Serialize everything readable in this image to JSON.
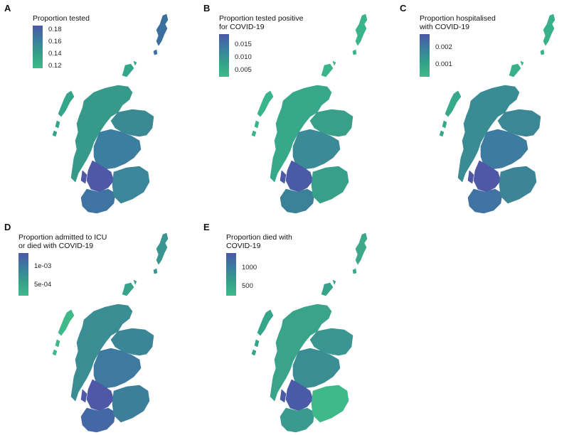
{
  "panels": [
    {
      "letter": "A",
      "legend_title": "Proportion tested",
      "legend_labels": [
        "0.18",
        "0.16",
        "0.14",
        "0.12"
      ],
      "region_colors": {
        "shetland": "#3a6f9e",
        "orkney": "#35a58a",
        "west_isles": "#35a58a",
        "north": "#37998a",
        "northeast": "#3b8a93",
        "central": "#3c7ea0",
        "glasgow": "#4e58a6",
        "southwest": "#3f73a2",
        "borders": "#3b8698"
      }
    },
    {
      "letter": "B",
      "legend_title": "Proportion tested positive\nfor COVID-19",
      "legend_labels": [
        "0.015",
        "0.010",
        "0.005"
      ],
      "region_colors": {
        "shetland": "#39b48b",
        "orkney": "#39b48b",
        "west_isles": "#39b48b",
        "north": "#37a889",
        "northeast": "#38a089",
        "central": "#3b8a96",
        "glasgow": "#4b5aa6",
        "southwest": "#3b8198",
        "borders": "#37a089"
      }
    },
    {
      "letter": "C",
      "legend_title": "Proportion hospitalised\nwith COVID-19",
      "legend_labels": [
        "0.002",
        "0.001"
      ],
      "region_colors": {
        "shetland": "#38b08a",
        "orkney": "#38b08a",
        "west_isles": "#37a88a",
        "north": "#3a8c94",
        "northeast": "#3b8796",
        "central": "#3d7ba0",
        "glasgow": "#4e58a6",
        "southwest": "#4072a2",
        "borders": "#3b8597"
      }
    },
    {
      "letter": "D",
      "legend_title": "Proportion admitted to ICU\nor died with COVID-19",
      "legend_labels": [
        "1e-03",
        "5e-04"
      ],
      "region_colors": {
        "shetland": "#3a9590",
        "orkney": "#37a38a",
        "west_isles": "#3fb98a",
        "north": "#3a8d93",
        "northeast": "#3b8696",
        "central": "#3e799f",
        "glasgow": "#4f58a6",
        "southwest": "#4468a5",
        "borders": "#3d7f9b"
      }
    },
    {
      "letter": "E",
      "legend_title": "Proportion died with\nCOVID-19",
      "legend_labels": [
        "1000",
        "500"
      ],
      "region_colors": {
        "shetland": "#3ea98a",
        "orkney": "#37a38a",
        "west_isles": "#35a58a",
        "north": "#39a48a",
        "northeast": "#3a9690",
        "central": "#3b8d94",
        "glasgow": "#4b5aa6",
        "southwest": "#3a9a8f",
        "borders": "#3fb98a"
      }
    }
  ]
}
